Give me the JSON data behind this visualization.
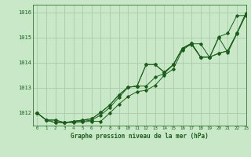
{
  "bg_color": "#c8e8c8",
  "grid_color": "#aaccaa",
  "line_color": "#1a5e1a",
  "title": "Graphe pression niveau de la mer (hPa)",
  "xlim": [
    -0.5,
    23
  ],
  "ylim": [
    1011.5,
    1016.3
  ],
  "yticks": [
    1012,
    1013,
    1014,
    1015,
    1016
  ],
  "xticks": [
    0,
    1,
    2,
    3,
    4,
    5,
    6,
    7,
    8,
    9,
    10,
    11,
    12,
    13,
    14,
    15,
    16,
    17,
    18,
    19,
    20,
    21,
    22,
    23
  ],
  "series": [
    [
      1012.0,
      1011.72,
      1011.72,
      1011.62,
      1011.62,
      1011.65,
      1011.67,
      1011.67,
      1012.0,
      1012.35,
      1012.65,
      1012.85,
      1012.9,
      1013.1,
      1013.5,
      1013.75,
      1014.5,
      1014.75,
      1014.75,
      1014.2,
      1015.0,
      1014.4,
      1015.15,
      1015.9
    ],
    [
      1012.0,
      1011.72,
      1011.72,
      1011.62,
      1011.65,
      1011.67,
      1011.72,
      1011.92,
      1012.22,
      1012.62,
      1013.02,
      1013.07,
      1013.07,
      1013.42,
      1013.57,
      1013.92,
      1014.57,
      1014.72,
      1014.22,
      1014.22,
      1015.02,
      1015.17,
      1015.87,
      1015.87
    ],
    [
      1012.0,
      1011.72,
      1011.62,
      1011.62,
      1011.67,
      1011.72,
      1011.77,
      1012.02,
      1012.32,
      1012.72,
      1013.02,
      1013.07,
      1013.92,
      1013.92,
      1013.62,
      1013.92,
      1014.57,
      1014.77,
      1014.22,
      1014.22,
      1014.37,
      1014.47,
      1015.17,
      1015.97
    ],
    [
      1012.0,
      1011.72,
      1011.62,
      1011.62,
      1011.67,
      1011.72,
      1011.77,
      1012.02,
      1012.32,
      1012.72,
      1013.02,
      1013.07,
      1013.92,
      1013.92,
      1013.62,
      1013.92,
      1014.57,
      1014.77,
      1014.22,
      1014.22,
      1014.37,
      1014.47,
      1015.17,
      1015.97
    ]
  ]
}
